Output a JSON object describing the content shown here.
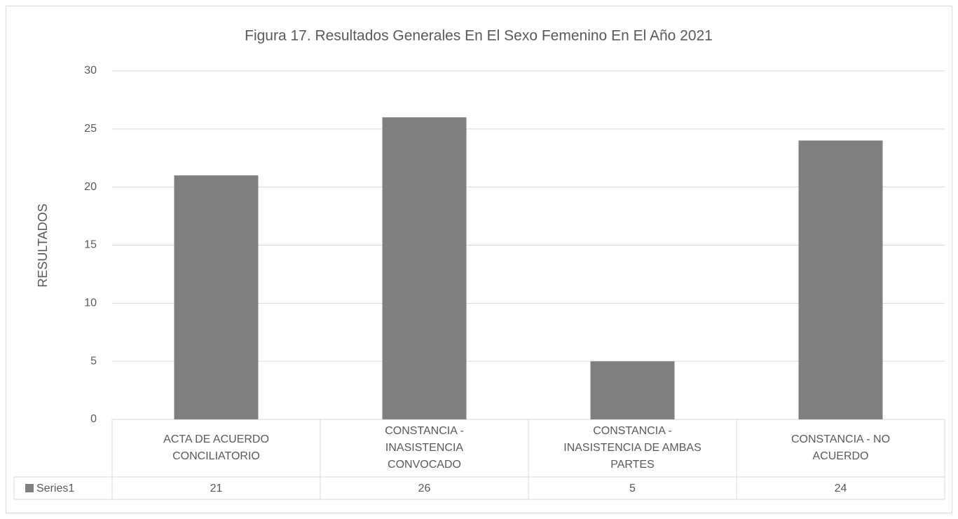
{
  "chart_data": {
    "type": "bar",
    "title": "Figura 17. Resultados Generales En El Sexo Femenino En El Año 2021",
    "y_label": "RESULTADOS",
    "categories": [
      "ACTA DE ACUERDO CONCILIATORIO",
      "CONSTANCIA - INASISTENCIA CONVOCADO",
      "CONSTANCIA - INASISTENCIA DE AMBAS PARTES",
      "CONSTANCIA - NO ACUERDO"
    ],
    "series": [
      {
        "name": "Series1",
        "color": "#7f7f7f",
        "values": [
          21,
          26,
          5,
          24
        ]
      }
    ],
    "ylim": [
      0,
      30
    ],
    "yticks": [
      0,
      5,
      10,
      15,
      20,
      25,
      30
    ],
    "grid": true,
    "data_table": true
  }
}
